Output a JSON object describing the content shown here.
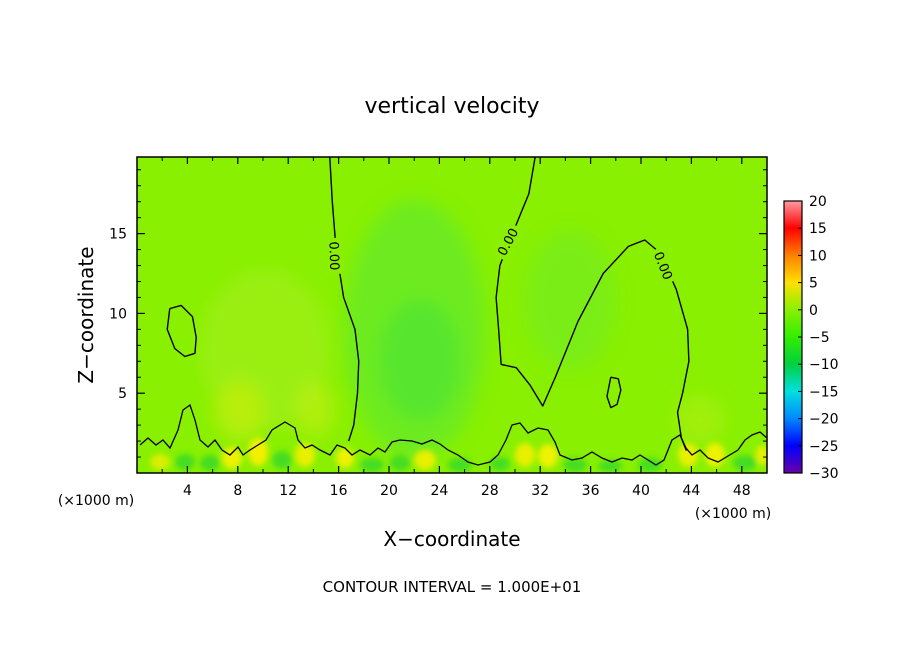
{
  "chart_data": {
    "type": "heatmap",
    "title": "vertical velocity",
    "xlabel": "X−coordinate",
    "ylabel": "Z−coordinate",
    "x_unit": "(×1000 m)",
    "y_unit": "(×1000 m)",
    "xlim": [
      0,
      50
    ],
    "ylim": [
      0,
      19.8
    ],
    "x_ticks": [
      4,
      8,
      12,
      16,
      20,
      24,
      28,
      32,
      36,
      40,
      44,
      48
    ],
    "y_ticks": [
      5,
      10,
      15
    ],
    "colorbar": {
      "range": [
        -30,
        20
      ],
      "ticks": [
        20,
        15,
        10,
        5,
        0,
        -5,
        -10,
        -15,
        -20,
        -25,
        -30
      ],
      "tick_labels": [
        "20",
        "15",
        "10",
        "5",
        "0",
        "−5",
        "−10",
        "−15",
        "−20",
        "−25",
        "−30"
      ],
      "stops": [
        "#6a00a8",
        "#0000ff",
        "#0088ff",
        "#00e0e0",
        "#00d040",
        "#33ee00",
        "#88f000",
        "#ffe000",
        "#ff8000",
        "#ff0000",
        "#ff9aa0"
      ]
    },
    "contour_label": "0.00",
    "contour_interval_text": "CONTOUR INTERVAL = 1.000E+01",
    "zero_contours": [
      {
        "label": "0.00",
        "points": [
          [
            15.3,
            19.8
          ],
          [
            15.5,
            17
          ],
          [
            15.8,
            14
          ],
          [
            16.4,
            11
          ],
          [
            17.3,
            9
          ],
          [
            17.6,
            7
          ],
          [
            17.5,
            5
          ],
          [
            17.2,
            3
          ],
          [
            16.8,
            2
          ]
        ]
      },
      {
        "label": "0.00",
        "points": [
          [
            31.6,
            19.8
          ],
          [
            31.1,
            17.5
          ],
          [
            29.8,
            15
          ],
          [
            28.8,
            13
          ],
          [
            28.5,
            11
          ],
          [
            28.7,
            9
          ],
          [
            28.9,
            6.8
          ],
          [
            30.1,
            6.6
          ],
          [
            31.2,
            5.5
          ],
          [
            32.2,
            4.2
          ],
          [
            33.2,
            6
          ],
          [
            35,
            9.5
          ],
          [
            37,
            12.5
          ],
          [
            39,
            14.2
          ],
          [
            40.3,
            14.6
          ],
          [
            41.5,
            13.8
          ],
          [
            42.8,
            11.5
          ],
          [
            43.7,
            9
          ],
          [
            43.8,
            7
          ],
          [
            43.3,
            5
          ],
          [
            42.9,
            3.8
          ],
          [
            43.2,
            2.2
          ],
          [
            43.6,
            1.4
          ]
        ]
      },
      {
        "label": "",
        "points": [
          [
            2.6,
            10.3
          ],
          [
            3.5,
            10.5
          ],
          [
            4.4,
            9.8
          ],
          [
            4.7,
            8.5
          ],
          [
            4.6,
            7.5
          ],
          [
            3.8,
            7.3
          ],
          [
            3.0,
            7.8
          ],
          [
            2.4,
            9.0
          ],
          [
            2.6,
            10.3
          ]
        ]
      },
      {
        "label": "",
        "points": [
          [
            37.6,
            6
          ],
          [
            38.2,
            5.9
          ],
          [
            38.4,
            5.2
          ],
          [
            38.1,
            4.3
          ],
          [
            37.6,
            4.1
          ],
          [
            37.3,
            4.8
          ],
          [
            37.6,
            6
          ]
        ]
      }
    ]
  }
}
